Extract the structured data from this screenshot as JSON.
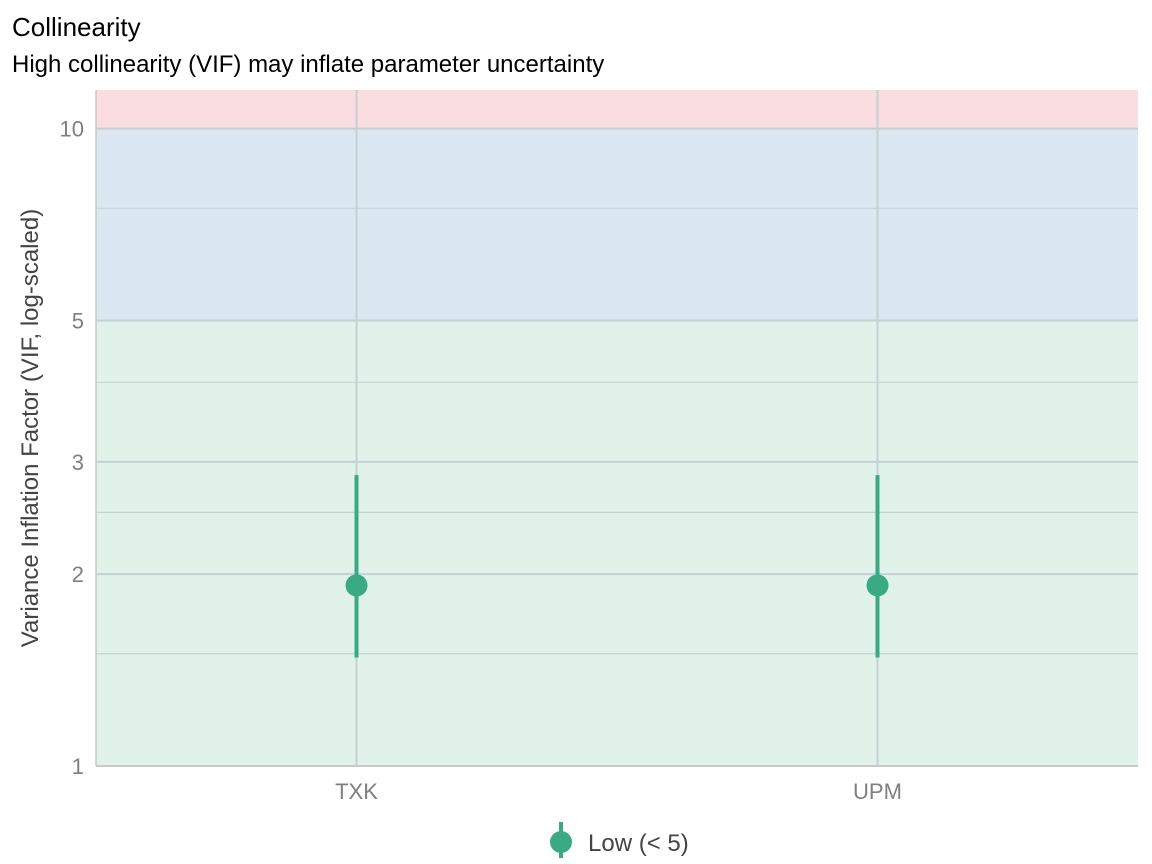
{
  "chart_data": {
    "type": "scatter",
    "title": "Collinearity",
    "subtitle": "High collinearity (VIF) may inflate parameter uncertainty",
    "xlabel": "",
    "ylabel": "Variance Inflation Factor (VIF, log-scaled)",
    "y_scale": "log",
    "ylim": [
      1,
      11.5
    ],
    "y_major_ticks": [
      1,
      2,
      3,
      5,
      10
    ],
    "y_minor_ticks": [
      1.5,
      2.5,
      4,
      7.5
    ],
    "categories": [
      "TXK",
      "UPM"
    ],
    "series": [
      {
        "name": "Low (< 5)",
        "color": "#3aaa85",
        "points": [
          {
            "x": "TXK",
            "vif": 1.92,
            "ci_low": 1.48,
            "ci_high": 2.86
          },
          {
            "x": "UPM",
            "vif": 1.92,
            "ci_low": 1.48,
            "ci_high": 2.86
          }
        ]
      }
    ],
    "bands": [
      {
        "from": 1,
        "to": 5,
        "color": "#e1f2eb"
      },
      {
        "from": 5,
        "to": 10,
        "color": "#dce8f1"
      },
      {
        "from": 10,
        "to": 11.5,
        "color": "#f9dde0"
      }
    ],
    "grid": true,
    "legend": "bottom"
  }
}
